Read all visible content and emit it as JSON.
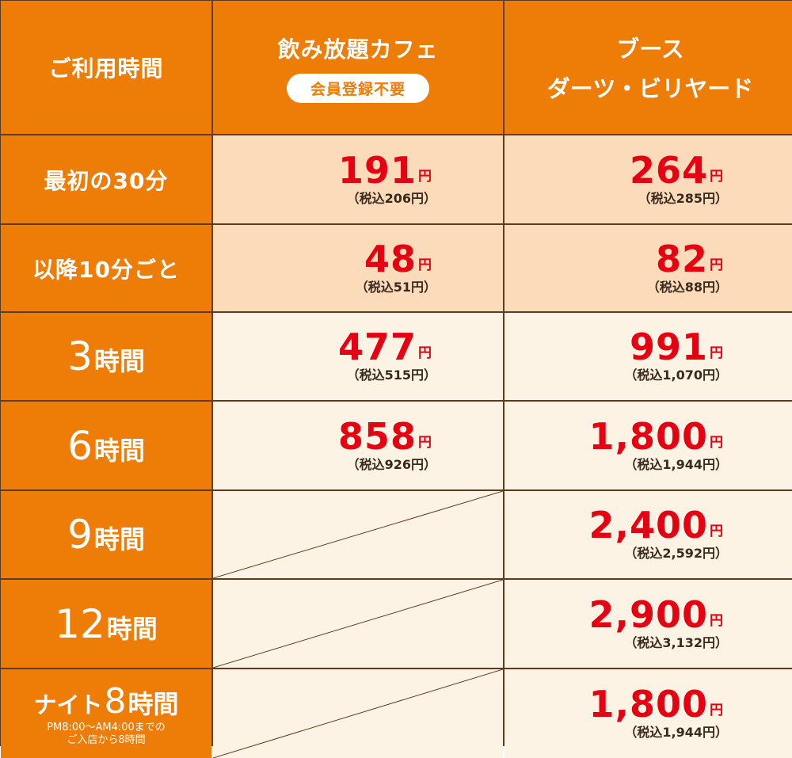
{
  "header": {
    "usage_time": "ご利用時間",
    "cafe_title": "飲み放題カフェ",
    "cafe_badge": "会員登録不要",
    "booth_line1": "ブース",
    "booth_line2": "ダーツ・ビリヤード"
  },
  "yen": "円",
  "rows": [
    {
      "label": "最初の30分",
      "cafe": {
        "price": "191",
        "tax": "（税込206円）"
      },
      "booth": {
        "price": "264",
        "tax": "（税込285円）"
      }
    },
    {
      "label": "以降10分ごと",
      "cafe": {
        "price": "48",
        "tax": "（税込51円）"
      },
      "booth": {
        "price": "82",
        "tax": "（税込88円）"
      }
    },
    {
      "label_num": "3",
      "label_unit": "時間",
      "cafe": {
        "price": "477",
        "tax": "（税込515円）"
      },
      "booth": {
        "price": "991",
        "tax": "（税込1,070円）"
      }
    },
    {
      "label_num": "6",
      "label_unit": "時間",
      "cafe": {
        "price": "858",
        "tax": "（税込926円）"
      },
      "booth": {
        "price": "1,800",
        "tax": "（税込1,944円）"
      }
    },
    {
      "label_num": "9",
      "label_unit": "時間",
      "booth": {
        "price": "2,400",
        "tax": "（税込2,592円）"
      }
    },
    {
      "label_num": "12",
      "label_unit": "時間",
      "booth": {
        "price": "2,900",
        "tax": "（税込3,132円）"
      }
    },
    {
      "label_kana": "ナイト",
      "label_num": "8",
      "label_unit": "時間",
      "note_line1": "PM8:00～AM4:00までの",
      "note_line2": "ご入店から8時間",
      "booth": {
        "price": "1,800",
        "tax": "（税込1,944円）"
      }
    }
  ],
  "colors": {
    "orange": "#ee7d08",
    "peach": "#fbdbba",
    "cream": "#fdf3e4",
    "red": "#e50012",
    "border": "#5e3a1e"
  }
}
